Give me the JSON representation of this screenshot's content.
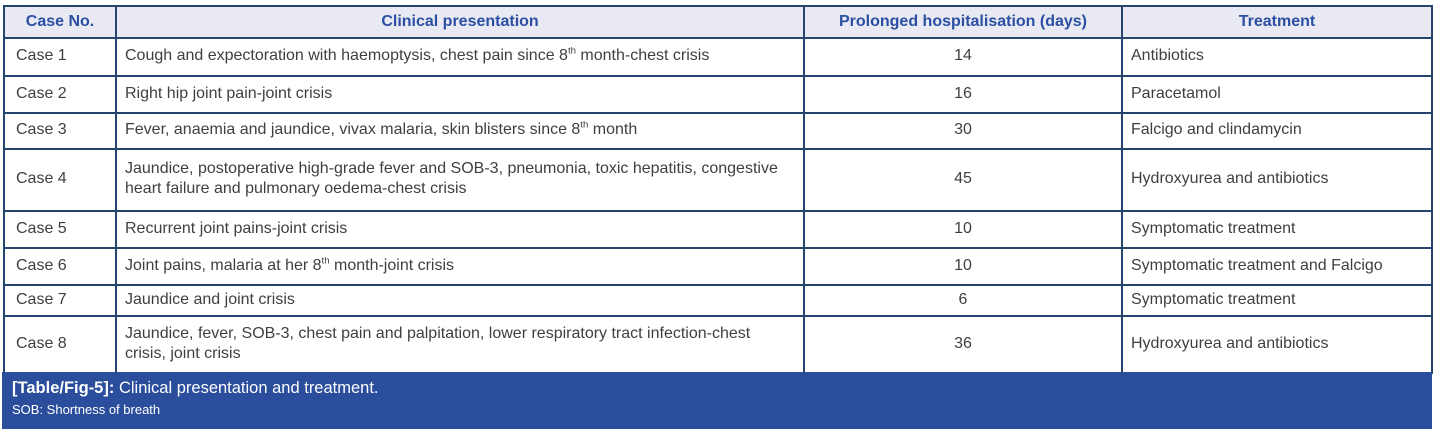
{
  "table": {
    "columns": [
      {
        "label": "Case No."
      },
      {
        "label": "Clinical presentation"
      },
      {
        "label": "Prolonged hospitalisation (days)"
      },
      {
        "label": "Treatment"
      }
    ],
    "rows": [
      {
        "case": "Case 1",
        "presentation": "Cough and expectoration with haemoptysis, chest pain since 8^{th} month-chest crisis",
        "days": "14",
        "treatment": "Antibiotics"
      },
      {
        "case": "Case 2",
        "presentation": "Right hip joint pain-joint crisis",
        "days": "16",
        "treatment": "Paracetamol"
      },
      {
        "case": "Case 3",
        "presentation": "Fever, anaemia and jaundice, vivax malaria, skin blisters since 8^{th} month",
        "days": "30",
        "treatment": "Falcigo and clindamycin"
      },
      {
        "case": "Case 4",
        "presentation": "Jaundice, postoperative high-grade fever and SOB-3, pneumonia, toxic hepatitis, congestive heart failure and pulmonary oedema-chest crisis",
        "days": "45",
        "treatment": "Hydroxyurea and antibiotics"
      },
      {
        "case": "Case 5",
        "presentation": "Recurrent joint pains-joint crisis",
        "days": "10",
        "treatment": "Symptomatic treatment"
      },
      {
        "case": "Case 6",
        "presentation": "Joint pains, malaria at her 8^{th} month-joint crisis",
        "days": "10",
        "treatment": "Symptomatic treatment and Falcigo"
      },
      {
        "case": "Case 7",
        "presentation": "Jaundice and joint crisis",
        "days": "6",
        "treatment": "Symptomatic treatment"
      },
      {
        "case": "Case 8",
        "presentation": "Jaundice, fever, SOB-3, chest pain and palpitation, lower respiratory tract infection-chest crisis, joint crisis",
        "days": "36",
        "treatment": "Hydroxyurea and antibiotics"
      }
    ]
  },
  "caption": {
    "label": "[Table/Fig-5]:",
    "text": "Clinical presentation and treatment.",
    "note": "SOB: Shortness of breath"
  },
  "colors": {
    "border": "#25456e",
    "header_bg": "#e8e9f2",
    "header_text": "#2b4fa2",
    "body_text": "#3f3f3f",
    "caption_bg": "#2a4d9c",
    "caption_text": "#ffffff"
  }
}
